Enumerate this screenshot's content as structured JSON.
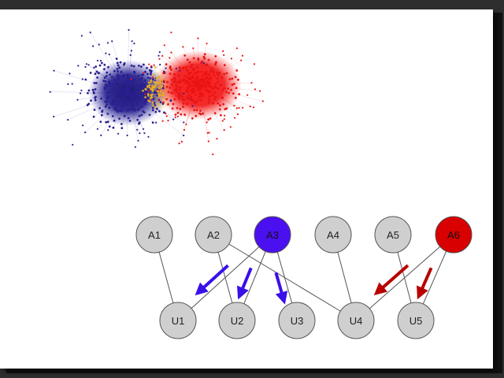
{
  "colors": {
    "blue_community": "#2a1f8f",
    "red_community": "#e81414",
    "bridge": "#e8b020",
    "blue_node": "#4a10f0",
    "red_node": "#d80000",
    "gray_node": "#cfcfcf",
    "edge": "#555555",
    "blue_arrow": "#3a10e8",
    "red_arrow": "#b80000"
  },
  "diagram": {
    "top_nodes": [
      {
        "id": "A1",
        "label": "A1",
        "fill": "gray"
      },
      {
        "id": "A2",
        "label": "A2",
        "fill": "gray"
      },
      {
        "id": "A3",
        "label": "A3",
        "fill": "blue"
      },
      {
        "id": "A4",
        "label": "A4",
        "fill": "gray"
      },
      {
        "id": "A5",
        "label": "A5",
        "fill": "gray"
      },
      {
        "id": "A6",
        "label": "A6",
        "fill": "red"
      }
    ],
    "bottom_nodes": [
      {
        "id": "U1",
        "label": "U1"
      },
      {
        "id": "U2",
        "label": "U2"
      },
      {
        "id": "U3",
        "label": "U3"
      },
      {
        "id": "U4",
        "label": "U4"
      },
      {
        "id": "U5",
        "label": "U5"
      }
    ],
    "edges": [
      [
        "A1",
        "U1"
      ],
      [
        "A2",
        "U2"
      ],
      [
        "A2",
        "U4"
      ],
      [
        "A3",
        "U1"
      ],
      [
        "A3",
        "U2"
      ],
      [
        "A3",
        "U3"
      ],
      [
        "A4",
        "U4"
      ],
      [
        "A5",
        "U5"
      ],
      [
        "A6",
        "U4"
      ],
      [
        "A6",
        "U5"
      ]
    ],
    "influence_arrows": [
      {
        "edge": [
          "A3",
          "U1"
        ],
        "color": "blue"
      },
      {
        "edge": [
          "A3",
          "U2"
        ],
        "color": "blue"
      },
      {
        "edge": [
          "A3",
          "U3"
        ],
        "color": "blue"
      },
      {
        "edge": [
          "A6",
          "U4"
        ],
        "color": "red"
      },
      {
        "edge": [
          "A6",
          "U5"
        ],
        "color": "red"
      }
    ]
  }
}
